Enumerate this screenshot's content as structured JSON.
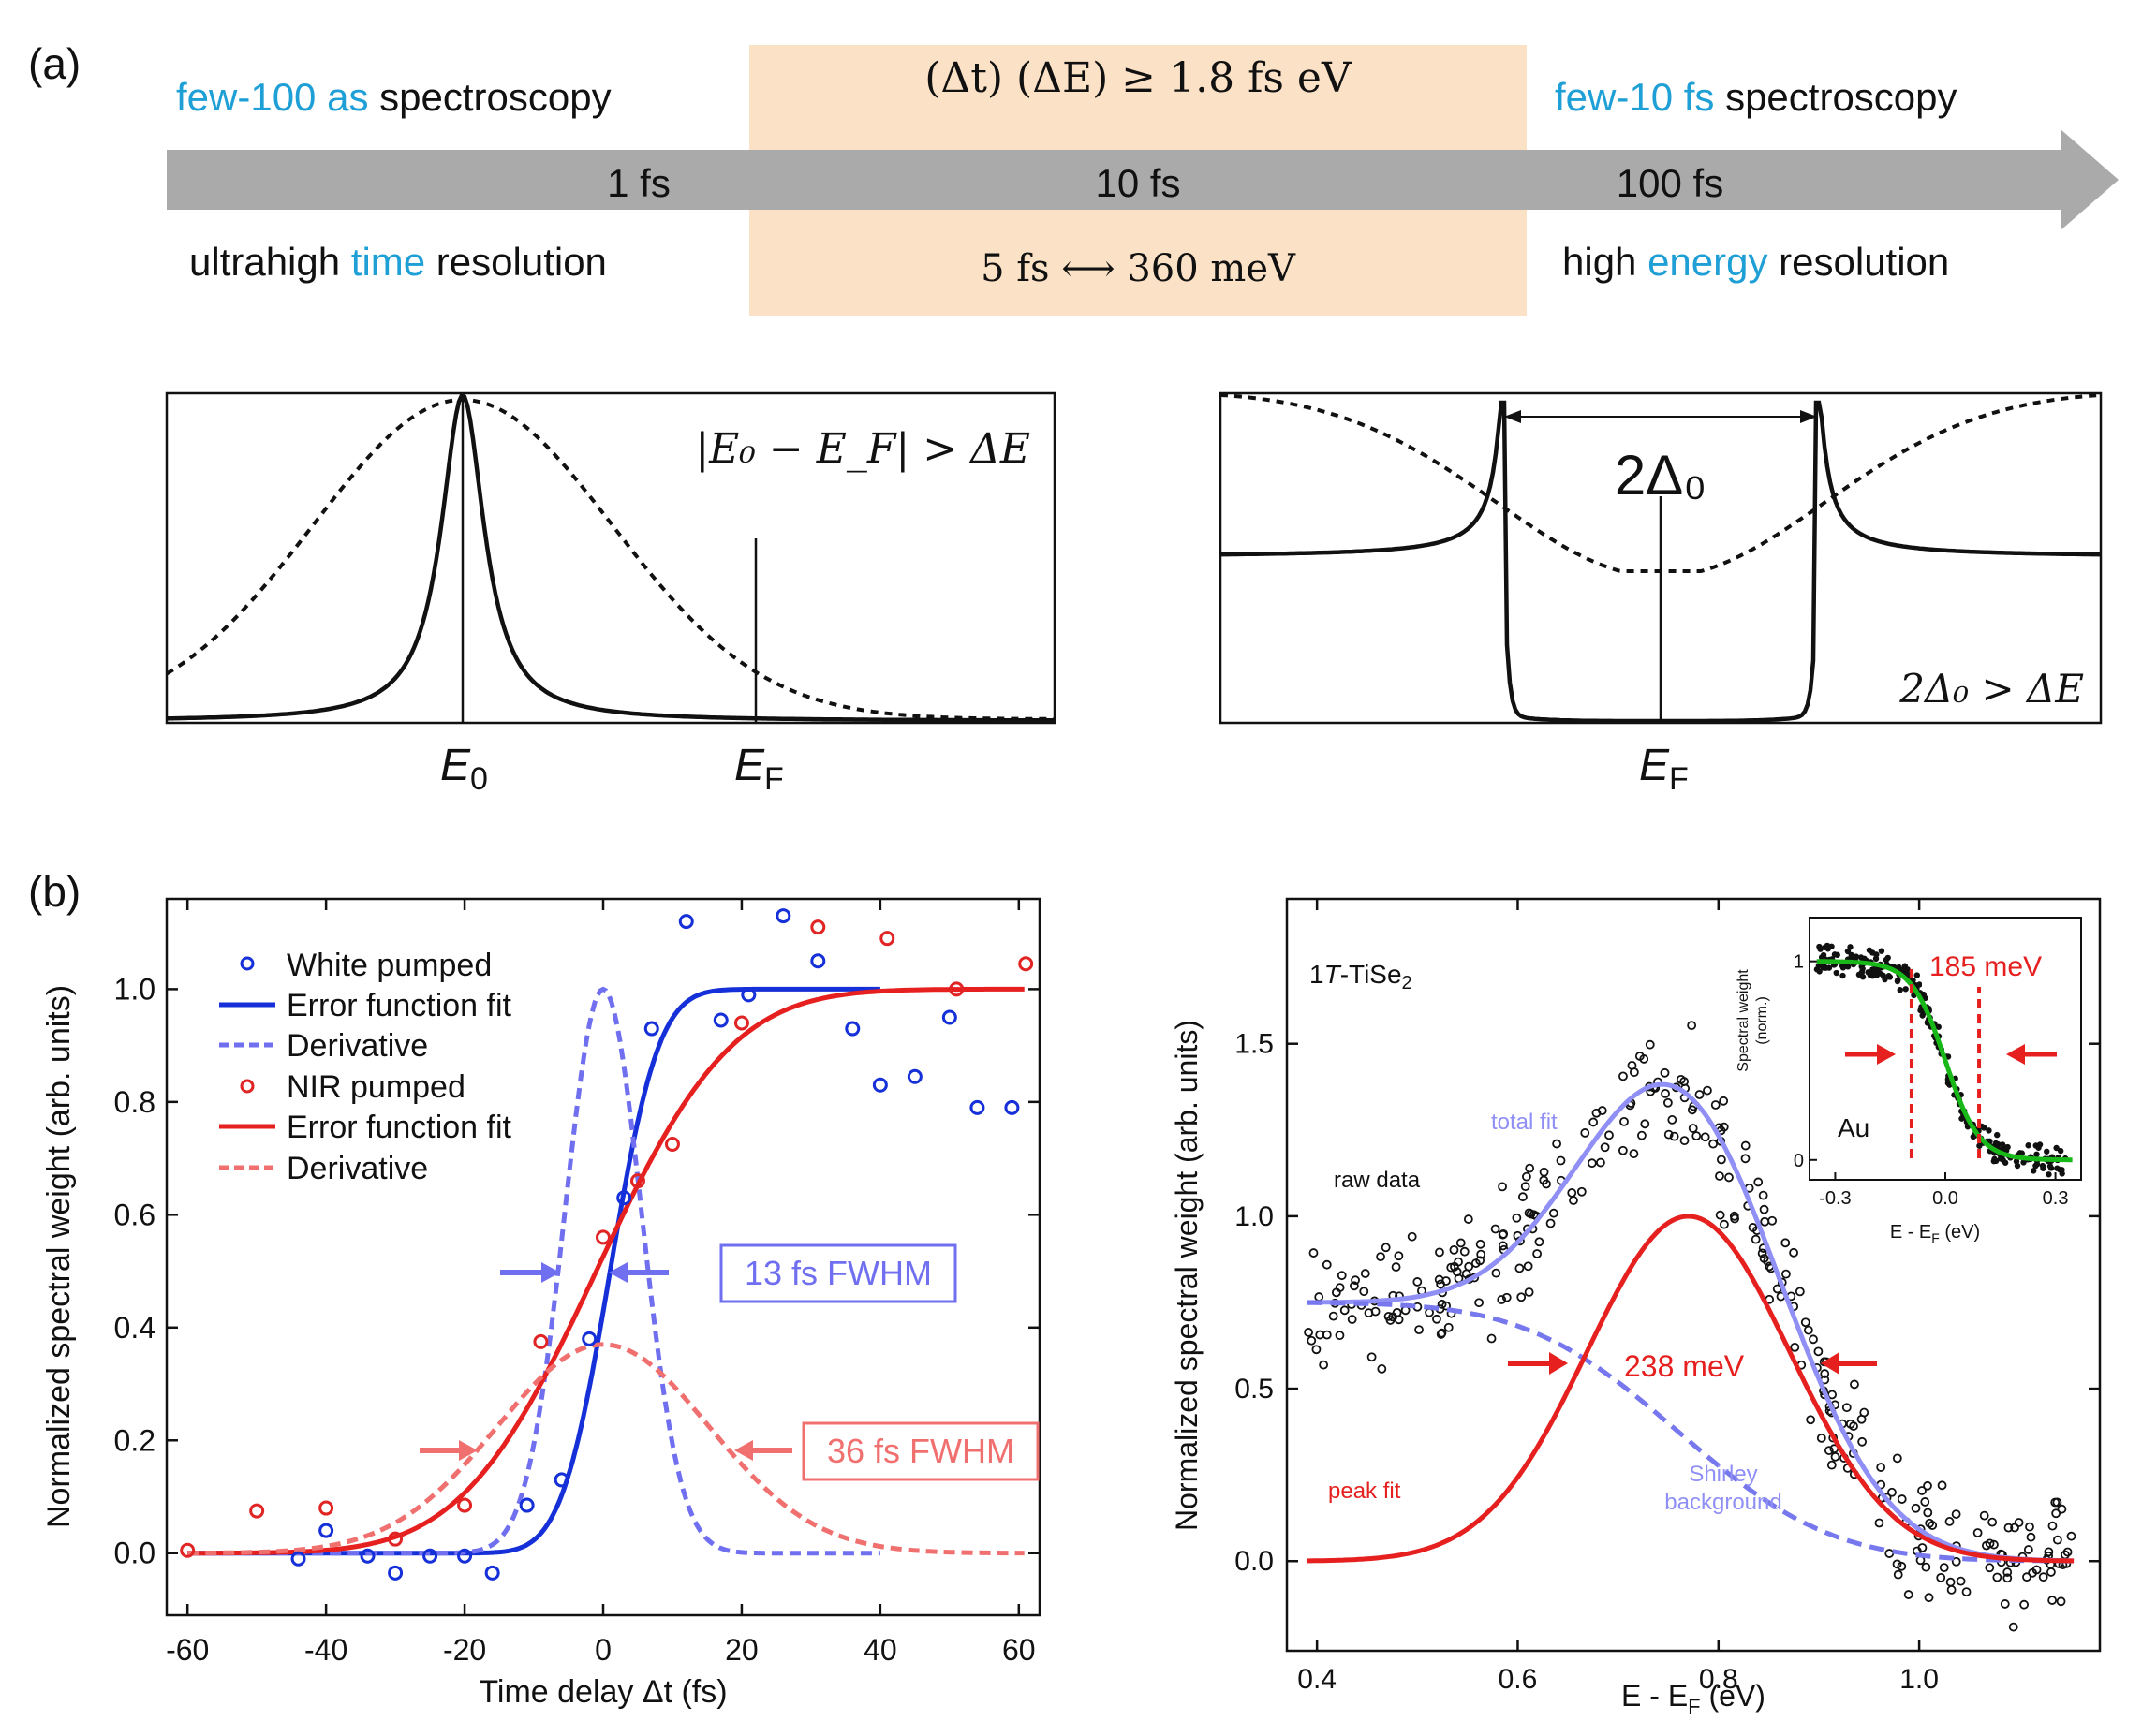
{
  "panel_labels": {
    "a": "(a)",
    "b": "(b)"
  },
  "colors": {
    "blue": "#1e9fd6",
    "black": "#111111",
    "timeline": "#a9aaa9",
    "band": "#fbe2c6",
    "data_blue": "#1530d8",
    "fit_blue": "#1530d8",
    "deriv_blue": "#6f6ff0",
    "data_red": "#e12424",
    "fit_red": "#e61f1f",
    "deriv_red": "#f07070",
    "total_fit": "#8f8ff5",
    "shirley": "#7777ee",
    "peak_fit": "#e61f1f",
    "green_fit": "#17b817"
  },
  "timeline": {
    "left_header": {
      "accent": "few-100 as",
      "rest": " spectroscopy"
    },
    "right_header": {
      "accent": "few-10 fs",
      "rest": " spectroscopy"
    },
    "band_formula": "(Δt) (ΔE) ≥ 1.8 fs eV",
    "band_example": "5 fs ⟷ 360 meV",
    "ticks": [
      "1 fs",
      "10 fs",
      "100 fs"
    ],
    "left_footer": {
      "pre": "ultrahigh ",
      "accent": "time",
      "post": " resolution"
    },
    "right_footer": {
      "pre": "high ",
      "accent": "energy",
      "post": " resolution"
    }
  },
  "schematic_left": {
    "condition": "|E₀ − E_F| > ΔE",
    "labels": {
      "e0_main": "E",
      "e0_sub": "0",
      "ef_main": "E",
      "ef_sub": "F"
    }
  },
  "schematic_right": {
    "gap_label": "2Δ₀",
    "condition": "2Δ₀ > ΔE",
    "labels": {
      "ef_main": "E",
      "ef_sub": "F"
    }
  },
  "chart_data": [
    {
      "id": "b-left",
      "type": "scatter",
      "title": "",
      "xlabel": "Time delay Δt (fs)",
      "ylabel": "Normalized spectral weight (arb. units)",
      "xlim": [
        -63,
        63
      ],
      "ylim": [
        -0.11,
        1.16
      ],
      "xticks": [
        -60,
        -40,
        -20,
        0,
        20,
        40,
        60
      ],
      "xtick_labels": [
        "-60",
        "-40",
        "-20",
        "0",
        "20",
        "40",
        "60"
      ],
      "yticks": [
        0.0,
        0.2,
        0.4,
        0.6,
        0.8,
        1.0
      ],
      "ytick_labels": [
        "0.0",
        "0.2",
        "0.4",
        "0.6",
        "0.8",
        "1.0"
      ],
      "legend": [
        {
          "label": "White pumped",
          "kind": "circle",
          "color": "#1530d8"
        },
        {
          "label": "Error function fit",
          "kind": "line",
          "color": "#1530d8"
        },
        {
          "label": "Derivative",
          "kind": "dash",
          "color": "#6f6ff0"
        },
        {
          "label": "NIR pumped",
          "kind": "circle",
          "color": "#e12424"
        },
        {
          "label": "Error function fit",
          "kind": "line",
          "color": "#e61f1f"
        },
        {
          "label": "Derivative",
          "kind": "dash",
          "color": "#f07070"
        }
      ],
      "series": [
        {
          "name": "White pumped",
          "kind": "points",
          "color": "#1530d8",
          "points": [
            [
              -44,
              -0.01
            ],
            [
              -40,
              0.04
            ],
            [
              -34,
              -0.005
            ],
            [
              -30,
              -0.035
            ],
            [
              -25,
              -0.005
            ],
            [
              -20,
              -0.005
            ],
            [
              -16,
              -0.035
            ],
            [
              -11,
              0.085
            ],
            [
              -6,
              0.13
            ],
            [
              -2,
              0.38
            ],
            [
              3,
              0.63
            ],
            [
              7,
              0.93
            ],
            [
              12,
              1.12
            ],
            [
              17,
              0.945
            ],
            [
              21,
              0.99
            ],
            [
              26,
              1.13
            ],
            [
              31,
              1.05
            ],
            [
              36,
              0.93
            ],
            [
              40,
              0.83
            ],
            [
              45,
              0.845
            ],
            [
              50,
              0.95
            ],
            [
              54,
              0.79
            ],
            [
              59,
              0.79
            ]
          ]
        },
        {
          "name": "White fit",
          "kind": "erf",
          "color": "#1530d8",
          "amplitude": 1.0,
          "center": 1,
          "fwhm": 13,
          "range": [
            -60,
            40
          ]
        },
        {
          "name": "White derivative",
          "kind": "gauss",
          "color": "#6f6ff0",
          "amplitude": 1.0,
          "center": 0,
          "fwhm": 13,
          "range": [
            -60,
            40
          ]
        },
        {
          "name": "NIR pumped",
          "kind": "points",
          "color": "#e12424",
          "points": [
            [
              -60,
              0.005
            ],
            [
              -50,
              0.075
            ],
            [
              -40,
              0.08
            ],
            [
              -30,
              0.025
            ],
            [
              -20,
              0.085
            ],
            [
              -9,
              0.375
            ],
            [
              0,
              0.56
            ],
            [
              5,
              0.66
            ],
            [
              10,
              0.725
            ],
            [
              20,
              0.94
            ],
            [
              31,
              1.11
            ],
            [
              41,
              1.09
            ],
            [
              51,
              1.0
            ],
            [
              61,
              1.045
            ]
          ]
        },
        {
          "name": "NIR fit",
          "kind": "erf",
          "color": "#e61f1f",
          "amplitude": 1.0,
          "center": -1,
          "fwhm": 36,
          "range": [
            -60,
            61
          ]
        },
        {
          "name": "NIR derivative",
          "kind": "gauss",
          "color": "#f07070",
          "amplitude": 0.37,
          "center": 0,
          "fwhm": 36,
          "range": [
            -60,
            61
          ]
        }
      ],
      "annotations": [
        {
          "text": "13 fs FWHM",
          "color": "#6f6ff0"
        },
        {
          "text": "36 fs FWHM",
          "color": "#f07070"
        }
      ]
    },
    {
      "id": "b-right",
      "type": "scatter",
      "title": "1T-TiSe₂",
      "xlabel": "E - E_F (eV)",
      "ylabel": "Normalized spectral weight (arb. units)",
      "xlim": [
        0.37,
        1.18
      ],
      "ylim": [
        -0.26,
        1.92
      ],
      "xticks": [
        0.4,
        0.6,
        0.8,
        1.0
      ],
      "xtick_labels": [
        "0.4",
        "0.6",
        "0.8",
        "1.0"
      ],
      "yticks": [
        0.0,
        0.5,
        1.0,
        1.5
      ],
      "ytick_labels": [
        "0.0",
        "0.5",
        "1.0",
        "1.5"
      ],
      "series": [
        {
          "name": "raw data",
          "kind": "noisy_points",
          "color": "#111111",
          "n": 330,
          "range": [
            0.39,
            1.16
          ],
          "noise": 0.11
        },
        {
          "name": "total fit",
          "kind": "sum",
          "color": "#8f8ff5"
        },
        {
          "name": "Shirley background",
          "kind": "shirley",
          "color": "#7777ee",
          "high": 0.75,
          "low": 0.0,
          "center": 0.76,
          "width": 0.12
        },
        {
          "name": "peak fit",
          "kind": "gauss",
          "color": "#e61f1f",
          "amplitude": 1.0,
          "center": 0.77,
          "fwhm": 0.238
        }
      ],
      "labels": {
        "sample_prefix": "1",
        "sample_italic": "T",
        "sample_main": "-TiSe",
        "sample_sub": "2",
        "raw": "raw data",
        "total": "total fit",
        "peak": "peak fit",
        "shirley_1": "Shirley",
        "shirley_2": "background",
        "fwhm": "238 meV"
      },
      "inset": {
        "type": "scatter",
        "xlabel": "E - E_F (eV)",
        "ylabel_1": "Spectral weight",
        "ylabel_2": "(norm.)",
        "xlim": [
          -0.37,
          0.37
        ],
        "ylim": [
          -0.1,
          1.22
        ],
        "xtick_labels": [
          "-0.3",
          "0.0",
          "0.3"
        ],
        "xticks": [
          -0.3,
          0.0,
          0.3
        ],
        "ytick_labels": [
          "0",
          "1"
        ],
        "yticks": [
          0,
          1
        ],
        "label": "Au",
        "fwhm_label": "185 meV",
        "fermi_kT": 0.046,
        "dashed_lines_x": [
          -0.092,
          0.092
        ]
      }
    }
  ]
}
